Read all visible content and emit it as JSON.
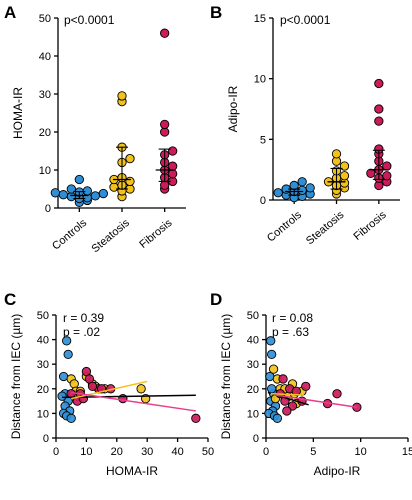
{
  "panels": {
    "A": {
      "letter": "A",
      "annotation": "p<0.0001"
    },
    "B": {
      "letter": "B",
      "annotation": "p<0.0001"
    },
    "C": {
      "letter": "C",
      "r": "r = 0.39",
      "p": "p = .02"
    },
    "D": {
      "letter": "D",
      "r": "r = 0.08",
      "p": "p = .63"
    }
  },
  "colors": {
    "Controls": "#2f8fd6",
    "Steatosis": "#f2c21b",
    "Fibrosis": "#cc1a5a",
    "overall_fit": "#000000",
    "steatosis_fit": "#f2c21b",
    "fibrosis_fit": "#e83e8c"
  },
  "chart_data": [
    {
      "id": "A",
      "type": "scatter",
      "title": "",
      "xlabel": "",
      "ylabel": "HOMA-IR",
      "categories": [
        "Controls",
        "Steatosis",
        "Fibrosis"
      ],
      "ylim": [
        0,
        50
      ],
      "yticks": [
        0,
        10,
        20,
        30,
        40,
        50
      ],
      "series": [
        {
          "name": "Controls",
          "values": [
            1.5,
            2,
            2.5,
            2.7,
            3,
            3.2,
            3.5,
            3.8,
            4,
            4.2,
            4.5,
            5,
            7.5
          ],
          "median": 3.3,
          "iqr": [
            2.5,
            4.3
          ]
        },
        {
          "name": "Steatosis",
          "values": [
            3,
            4.5,
            5,
            5.5,
            6,
            7,
            7.5,
            8,
            12,
            13,
            16,
            28,
            29.5
          ],
          "median": 7.5,
          "iqr": [
            5,
            16
          ]
        },
        {
          "name": "Fibrosis",
          "values": [
            5,
            6,
            7,
            8,
            9,
            10,
            11,
            12,
            14,
            15,
            20,
            22,
            46
          ],
          "median": 10,
          "iqr": [
            7,
            15.5
          ]
        }
      ]
    },
    {
      "id": "B",
      "type": "scatter",
      "title": "",
      "xlabel": "",
      "ylabel": "Adipo-IR",
      "categories": [
        "Controls",
        "Steatosis",
        "Fibrosis"
      ],
      "ylim": [
        0,
        15
      ],
      "yticks": [
        0,
        5,
        10,
        15
      ],
      "series": [
        {
          "name": "Controls",
          "values": [
            0.2,
            0.3,
            0.4,
            0.5,
            0.6,
            0.7,
            0.8,
            0.9,
            1.0,
            1.2,
            1.5
          ],
          "median": 0.7,
          "iqr": [
            0.4,
            0.9
          ]
        },
        {
          "name": "Steatosis",
          "values": [
            0.5,
            0.8,
            1.0,
            1.2,
            1.4,
            1.5,
            1.8,
            2.0,
            2.4,
            2.8,
            3.2,
            3.8
          ],
          "median": 1.5,
          "iqr": [
            0.9,
            2.6
          ]
        },
        {
          "name": "Fibrosis",
          "values": [
            1.2,
            1.5,
            1.8,
            2.0,
            2.2,
            2.5,
            2.8,
            3.2,
            3.8,
            4.2,
            6.5,
            7.5,
            9.6
          ],
          "median": 2.5,
          "iqr": [
            1.7,
            4.1
          ]
        }
      ]
    },
    {
      "id": "C",
      "type": "scatter",
      "title": "",
      "xlabel": "HOMA-IR",
      "ylabel": "Distance from IEC (µm)",
      "xlim": [
        0,
        50
      ],
      "ylim": [
        0,
        50
      ],
      "xticks": [
        0,
        10,
        20,
        30,
        40,
        50
      ],
      "yticks": [
        0,
        10,
        20,
        30,
        40,
        50
      ],
      "series": [
        {
          "name": "Controls",
          "points": [
            [
              3.5,
              39.5
            ],
            [
              4,
              34
            ],
            [
              2.5,
              25
            ],
            [
              3,
              18
            ],
            [
              4,
              15
            ],
            [
              3,
              13
            ],
            [
              4.5,
              11
            ],
            [
              2.5,
              10
            ],
            [
              3.5,
              9
            ],
            [
              5,
              8
            ],
            [
              2,
              17
            ]
          ]
        },
        {
          "name": "Steatosis",
          "points": [
            [
              5,
              24
            ],
            [
              6,
              22
            ],
            [
              6.5,
              19
            ],
            [
              8,
              19
            ],
            [
              10,
              25
            ],
            [
              12,
              22
            ],
            [
              7,
              17
            ],
            [
              28,
              20
            ],
            [
              29.5,
              16
            ],
            [
              13,
              21
            ],
            [
              16,
              20
            ]
          ]
        },
        {
          "name": "Fibrosis",
          "points": [
            [
              5,
              18
            ],
            [
              7,
              15
            ],
            [
              8,
              18
            ],
            [
              10,
              27
            ],
            [
              11,
              24
            ],
            [
              14,
              20
            ],
            [
              15,
              20
            ],
            [
              18,
              20
            ],
            [
              22,
              16
            ],
            [
              46,
              8
            ],
            [
              12,
              21
            ],
            [
              9,
              16
            ]
          ]
        }
      ],
      "fits": [
        {
          "name": "overall",
          "x": [
            2,
            46
          ],
          "y": [
            16.5,
            17.4
          ]
        },
        {
          "name": "steatosis",
          "x": [
            5,
            30
          ],
          "y": [
            16,
            23
          ]
        },
        {
          "name": "fibrosis",
          "x": [
            5,
            46
          ],
          "y": [
            18.5,
            11
          ]
        }
      ]
    },
    {
      "id": "D",
      "type": "scatter",
      "title": "",
      "xlabel": "Adipo-IR",
      "ylabel": "Distance from IEC (µm)",
      "xlim": [
        0,
        15
      ],
      "ylim": [
        0,
        50
      ],
      "xticks": [
        0,
        5,
        10,
        15
      ],
      "yticks": [
        0,
        10,
        20,
        30,
        40,
        50
      ],
      "series": [
        {
          "name": "Controls",
          "points": [
            [
              0.5,
              39.5
            ],
            [
              0.6,
              34
            ],
            [
              0.4,
              25
            ],
            [
              0.8,
              18
            ],
            [
              0.5,
              15
            ],
            [
              1.0,
              13
            ],
            [
              0.7,
              11
            ],
            [
              0.3,
              10
            ],
            [
              0.9,
              9
            ],
            [
              1.2,
              8
            ],
            [
              0.6,
              20
            ]
          ]
        },
        {
          "name": "Steatosis",
          "points": [
            [
              0.8,
              28
            ],
            [
              1.2,
              24
            ],
            [
              1.5,
              20
            ],
            [
              1.6,
              18
            ],
            [
              2.0,
              20
            ],
            [
              2.4,
              17
            ],
            [
              3.0,
              18
            ],
            [
              3.2,
              14
            ],
            [
              3.8,
              19
            ],
            [
              1.0,
              16
            ],
            [
              2.8,
              22
            ]
          ]
        },
        {
          "name": "Fibrosis",
          "points": [
            [
              1.5,
              18
            ],
            [
              2.0,
              15
            ],
            [
              2.5,
              20
            ],
            [
              2.8,
              13
            ],
            [
              3.2,
              19
            ],
            [
              3.8,
              15
            ],
            [
              4.2,
              21
            ],
            [
              1.8,
              24
            ],
            [
              7.5,
              18
            ],
            [
              9.6,
              12.5
            ],
            [
              2.2,
              11
            ],
            [
              6.5,
              14
            ]
          ]
        }
      ],
      "fits": [
        {
          "name": "overall",
          "x": [
            0.2,
            4.5
          ],
          "y": [
            18.5,
            13.5
          ]
        },
        {
          "name": "steatosis",
          "x": [
            0.5,
            4
          ],
          "y": [
            18,
            17.5
          ]
        },
        {
          "name": "fibrosis",
          "x": [
            1,
            9.6
          ],
          "y": [
            17.5,
            12.5
          ]
        }
      ]
    }
  ]
}
